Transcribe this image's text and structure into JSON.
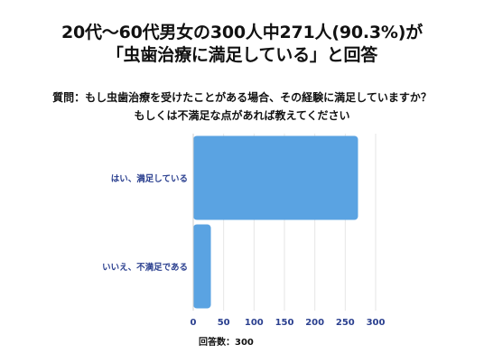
{
  "title": {
    "line1": "20代〜60代男女の300人中271人(90.3%)が",
    "line2": "「虫歯治療に満足している」と回答"
  },
  "question": {
    "line1": "質問：もし虫歯治療を受けたことがある場合、その経験に満足していますか？",
    "line2": "もしくは不満足な点があれば教えてください"
  },
  "chart_data": {
    "type": "bar",
    "orientation": "horizontal",
    "categories": [
      "はい、満足している",
      "いいえ、不満足である"
    ],
    "values": [
      271,
      29
    ],
    "xlim": [
      0,
      300
    ],
    "xticks": [
      0,
      50,
      100,
      150,
      200,
      250,
      300
    ],
    "bar_color": "#5aa3e2",
    "grid": true
  },
  "note": "回答数：300"
}
